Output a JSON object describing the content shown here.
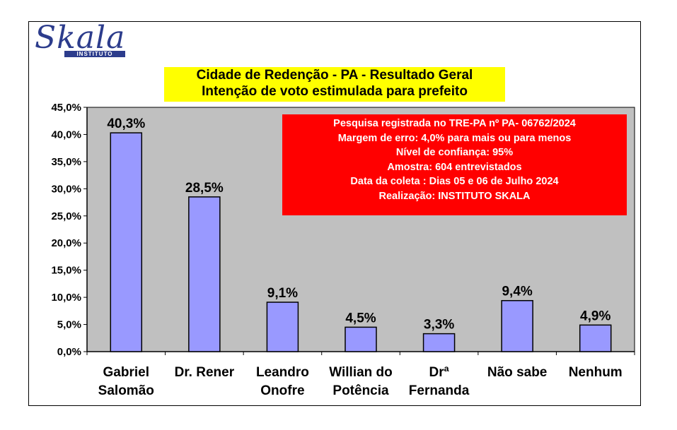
{
  "logo": {
    "word": "Skala",
    "subword": "INSTITUTO"
  },
  "title_lines": [
    "Cidade de Redenção - PA - Resultado Geral",
    "Intenção de voto estimulada para prefeito"
  ],
  "info_lines": [
    "Pesquisa registrada no TRE-PA nº PA- 06762/2024",
    "Margem de erro: 4,0% para mais ou para menos",
    "Nível de confiança: 95%",
    "Amostra: 604 entrevistados",
    "Data da coleta : Dias 05 e 06 de Julho 2024",
    "Realização: INSTITUTO SKALA"
  ],
  "colors": {
    "bar": "#9999ff",
    "plot_area": "#c0c0c0",
    "title_bg": "#ffff00",
    "info_bg": "#ff0000"
  },
  "chart_data": {
    "type": "bar",
    "title": "Cidade de Redenção - PA - Resultado Geral / Intenção de voto estimulada para prefeito",
    "categories": [
      [
        "Gabriel",
        "Salomão"
      ],
      [
        "Dr. Rener"
      ],
      [
        "Leandro",
        "Onofre"
      ],
      [
        "Willian do",
        "Potência"
      ],
      [
        "Drª",
        "Fernanda"
      ],
      [
        "Não sabe"
      ],
      [
        "Nenhum"
      ]
    ],
    "values": [
      40.3,
      28.5,
      9.1,
      4.5,
      3.3,
      9.4,
      4.9
    ],
    "data_labels": [
      "40,3%",
      "28,5%",
      "9,1%",
      "4,5%",
      "3,3%",
      "9,4%",
      "4,9%"
    ],
    "yticks": [
      0,
      5,
      10,
      15,
      20,
      25,
      30,
      35,
      40,
      45
    ],
    "ytick_labels": [
      "0,0%",
      "5,0%",
      "10,0%",
      "15,0%",
      "20,0%",
      "25,0%",
      "30,0%",
      "35,0%",
      "40,0%",
      "45,0%"
    ],
    "ylim": [
      0,
      45
    ],
    "grid": false,
    "legend": "none"
  }
}
